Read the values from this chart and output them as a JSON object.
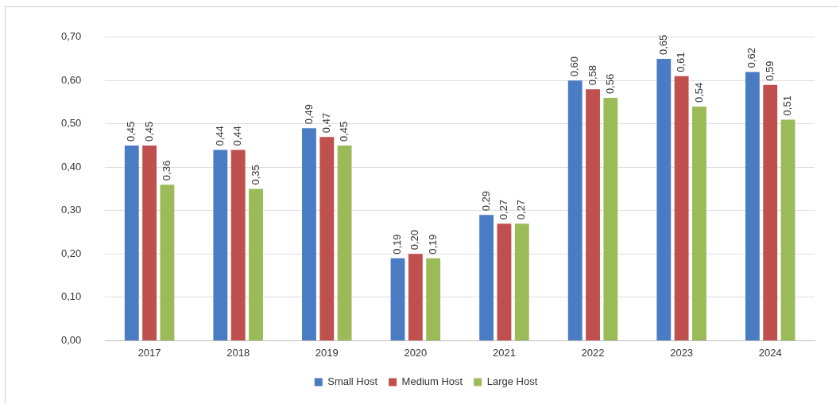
{
  "chart_data": {
    "type": "bar",
    "categories": [
      "2017",
      "2018",
      "2019",
      "2020",
      "2021",
      "2022",
      "2023",
      "2024"
    ],
    "series": [
      {
        "name": "Small Host",
        "color": "#4a7cc4",
        "values": [
          0.45,
          0.44,
          0.49,
          0.19,
          0.29,
          0.6,
          0.65,
          0.62
        ],
        "value_labels": [
          "0,45",
          "0,44",
          "0,49",
          "0,19",
          "0,29",
          "0,60",
          "0,65",
          "0,62"
        ]
      },
      {
        "name": "Medium Host",
        "color": "#c0504d",
        "values": [
          0.45,
          0.44,
          0.47,
          0.2,
          0.27,
          0.58,
          0.61,
          0.59
        ],
        "value_labels": [
          "0,45",
          "0,44",
          "0,47",
          "0,20",
          "0,27",
          "0,58",
          "0,61",
          "0,59"
        ]
      },
      {
        "name": "Large Host",
        "color": "#9bbb59",
        "values": [
          0.36,
          0.35,
          0.45,
          0.19,
          0.27,
          0.56,
          0.54,
          0.51
        ],
        "value_labels": [
          "0,36",
          "0,35",
          "0,45",
          "0,19",
          "0,27",
          "0,56",
          "0,54",
          "0,51"
        ]
      }
    ],
    "ylim": [
      0,
      0.7
    ],
    "yticks": [
      {
        "value": 0,
        "label": "0,00"
      },
      {
        "value": 0.1,
        "label": "0,10"
      },
      {
        "value": 0.2,
        "label": "0,20"
      },
      {
        "value": 0.3,
        "label": "0,30"
      },
      {
        "value": 0.4,
        "label": "0,40"
      },
      {
        "value": 0.5,
        "label": "0,50"
      },
      {
        "value": 0.6,
        "label": "0,60"
      },
      {
        "value": 0.7,
        "label": "0,70"
      }
    ],
    "grid": "y",
    "legend": "bottom"
  }
}
